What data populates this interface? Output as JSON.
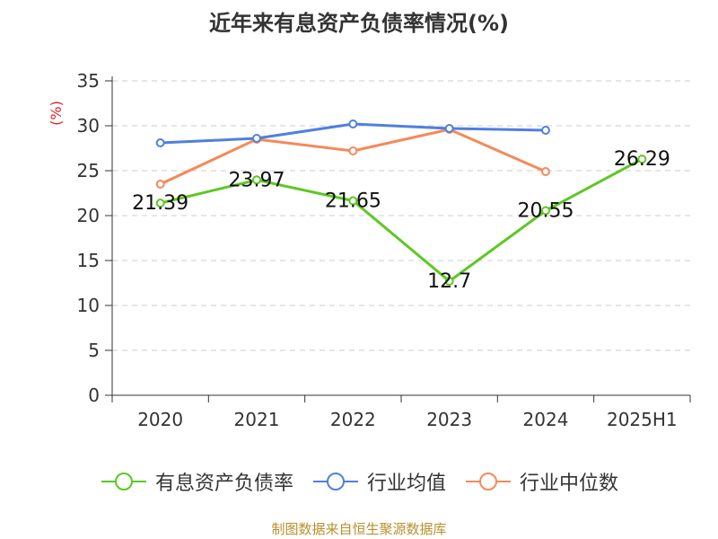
{
  "title": "近年来有息资产负债率情况(%)",
  "footer": "制图数据来自恒生聚源数据库",
  "chart_data": {
    "type": "line",
    "title": "近年来有息资产负债率情况(%)",
    "ylabel": "(%)",
    "xlabel": "",
    "ylim": [
      0,
      35
    ],
    "yticks": [
      0,
      5,
      10,
      15,
      20,
      25,
      30,
      35
    ],
    "grid": true,
    "legend_position": "bottom",
    "categories": [
      "2020",
      "2021",
      "2022",
      "2023",
      "2024",
      "2025H1"
    ],
    "series": [
      {
        "name": "有息资产负债率",
        "color": "#5cc823",
        "values": [
          21.39,
          23.97,
          21.65,
          12.7,
          20.55,
          26.29
        ],
        "labels": [
          "21.39",
          "23.97",
          "21.65",
          "12.7",
          "20.55",
          "26.29"
        ],
        "show_labels": true
      },
      {
        "name": "行业均值",
        "color": "#4f7fe0",
        "values": [
          28.1,
          28.6,
          30.2,
          29.7,
          29.5,
          null
        ],
        "show_labels": false
      },
      {
        "name": "行业中位数",
        "color": "#f5895a",
        "values": [
          23.5,
          28.5,
          27.2,
          29.6,
          24.9,
          null
        ],
        "show_labels": false
      }
    ]
  }
}
